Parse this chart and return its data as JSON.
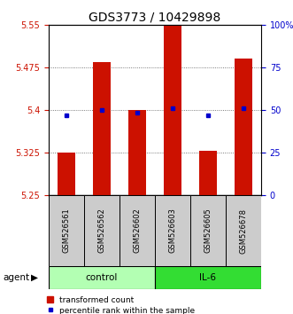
{
  "title": "GDS3773 / 10429898",
  "samples": [
    "GSM526561",
    "GSM526562",
    "GSM526602",
    "GSM526603",
    "GSM526605",
    "GSM526678"
  ],
  "bar_values": [
    5.325,
    5.485,
    5.4,
    5.55,
    5.328,
    5.49
  ],
  "bar_baseline": 5.25,
  "blue_marker_values": [
    5.39,
    5.4,
    5.396,
    5.403,
    5.39,
    5.403
  ],
  "ylim": [
    5.25,
    5.55
  ],
  "yticks_left": [
    5.25,
    5.325,
    5.4,
    5.475,
    5.55
  ],
  "yticks_left_labels": [
    "5.25",
    "5.325",
    "5.4",
    "5.475",
    "5.55"
  ],
  "yticks_right_pct": [
    0,
    25,
    50,
    75,
    100
  ],
  "yticks_right_labels": [
    "0",
    "25",
    "50",
    "75",
    "100%"
  ],
  "bar_color": "#cc1100",
  "marker_color": "#0000cc",
  "groups": [
    {
      "label": "control",
      "indices": [
        0,
        1,
        2
      ],
      "color": "#b3ffb3"
    },
    {
      "label": "IL-6",
      "indices": [
        3,
        4,
        5
      ],
      "color": "#33dd33"
    }
  ],
  "agent_label": "agent",
  "sample_bg": "#cccccc",
  "title_fontsize": 10,
  "tick_fontsize": 7,
  "axis_color_left": "#cc1100",
  "axis_color_right": "#0000cc",
  "grid_color": "#555555",
  "legend_fontsize": 6.5,
  "fig_width": 3.31,
  "fig_height": 3.54,
  "dpi": 100
}
